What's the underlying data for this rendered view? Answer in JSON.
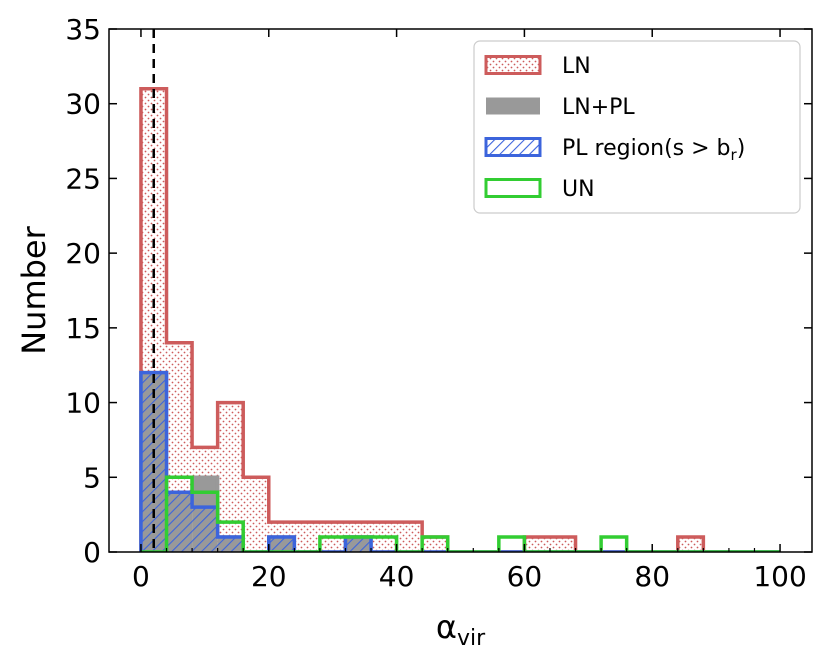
{
  "chart_data": {
    "type": "histogram",
    "xlabel": "α",
    "xlabel_sub": "vir",
    "ylabel": "Number",
    "xlim": [
      -5,
      105
    ],
    "ylim": [
      0,
      35
    ],
    "xticks": [
      0,
      20,
      40,
      60,
      80,
      100
    ],
    "yticks": [
      0,
      5,
      10,
      15,
      20,
      25,
      30,
      35
    ],
    "grid": false,
    "legend_position": "top-right",
    "reference_line": {
      "x": 2,
      "style": "dashed",
      "color": "#000000"
    },
    "bin_edges": [
      0,
      4,
      8,
      12,
      16,
      20,
      24,
      28,
      32,
      36,
      40,
      44,
      48,
      52,
      56,
      60,
      64,
      68,
      72,
      76,
      80,
      84,
      88,
      92,
      96,
      100
    ],
    "series": [
      {
        "name": "LN",
        "style": "dotted-fill",
        "color": "#cd5c5c",
        "counts": [
          31,
          14,
          7,
          10,
          5,
          2,
          2,
          2,
          2,
          2,
          2,
          1,
          0,
          0,
          0,
          1,
          1,
          0,
          0,
          0,
          0,
          1,
          0,
          0,
          0
        ]
      },
      {
        "name": "LN+PL",
        "style": "solid-fill",
        "color": "#999999",
        "counts": [
          12,
          4,
          5,
          1,
          0,
          1,
          0,
          0,
          1,
          0,
          0,
          0,
          0,
          0,
          0,
          0,
          0,
          0,
          0,
          0,
          0,
          0,
          0,
          0,
          0
        ]
      },
      {
        "name": "PL region(s > b",
        "name_sub": "r",
        "name_suffix": ")",
        "style": "hatched",
        "color": "#3c64dc",
        "counts": [
          12,
          4,
          3,
          1,
          0,
          1,
          0,
          0,
          1,
          0,
          0,
          0,
          0,
          0,
          0,
          0,
          0,
          0,
          0,
          0,
          0,
          0,
          0,
          0,
          0
        ]
      },
      {
        "name": "UN",
        "style": "outline",
        "color": "#32cd32",
        "counts": [
          0,
          5,
          4,
          2,
          0,
          0,
          0,
          1,
          1,
          1,
          0,
          1,
          0,
          0,
          1,
          0,
          0,
          0,
          1,
          0,
          0,
          0,
          0,
          0,
          0
        ]
      }
    ]
  }
}
